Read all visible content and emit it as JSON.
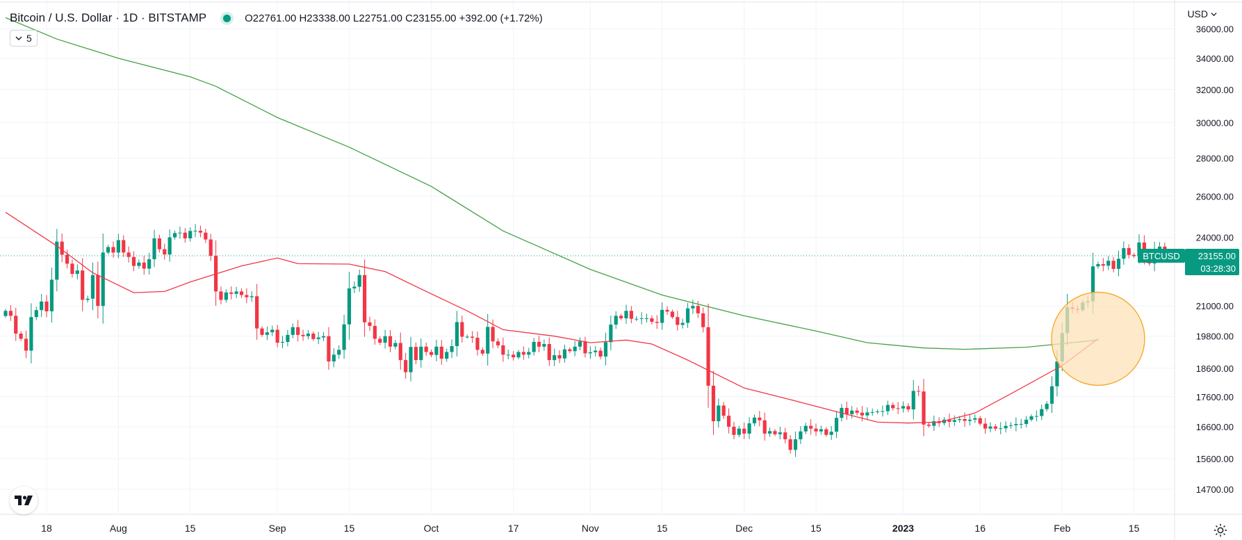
{
  "header": {
    "title": "Bitcoin / U.S. Dollar · 1D · BITSTAMP",
    "ohlc": "O22761.00  H23338.00  L22751.00  C23155.00  +392.00 (+1.72%)",
    "indicator_count": "5"
  },
  "currency": "USD",
  "colors": {
    "up": "#089981",
    "down": "#f23645",
    "ma_short": "#f23645",
    "ma_long": "#43a047",
    "highlight_fill": "#fde1b8",
    "highlight_stroke": "#f5a623",
    "price_line": "#089981"
  },
  "price_label": {
    "symbol": "BTCUSD",
    "price": "23155.00",
    "countdown": "03:28:30"
  },
  "chart_data": {
    "type": "candlestick",
    "title": "Bitcoin / U.S. Dollar · 1D · BITSTAMP",
    "xlabel": "",
    "ylabel": "",
    "y_scale": "log",
    "ylim": [
      14000,
      38000
    ],
    "xlim": [
      "2022-07-10",
      "2023-02-20"
    ],
    "grid": true,
    "y_ticks": [
      14700,
      15600,
      16600,
      17600,
      18600,
      19800,
      21000,
      24000,
      26000,
      28000,
      30000,
      32000,
      34000,
      36000
    ],
    "y_tick_labels": [
      "14700.00",
      "15600.00",
      "16600.00",
      "17600.00",
      "18600.00",
      "19800.00",
      "21000.00",
      "24000.00",
      "26000.00",
      "28000.00",
      "30000.00",
      "32000.00",
      "34000.00",
      "36000.00"
    ],
    "x_ticks": [
      {
        "date": "2022-07-18",
        "label": "18"
      },
      {
        "date": "2022-08-01",
        "label": "Aug"
      },
      {
        "date": "2022-08-15",
        "label": "15"
      },
      {
        "date": "2022-09-01",
        "label": "Sep"
      },
      {
        "date": "2022-09-15",
        "label": "15"
      },
      {
        "date": "2022-10-01",
        "label": "Oct"
      },
      {
        "date": "2022-10-17",
        "label": "17"
      },
      {
        "date": "2022-11-01",
        "label": "Nov"
      },
      {
        "date": "2022-11-15",
        "label": "15"
      },
      {
        "date": "2022-12-01",
        "label": "Dec"
      },
      {
        "date": "2022-12-15",
        "label": "15"
      },
      {
        "date": "2023-01-01",
        "label": "2023"
      },
      {
        "date": "2023-01-16",
        "label": "16"
      },
      {
        "date": "2023-02-01",
        "label": "Feb"
      },
      {
        "date": "2023-02-15",
        "label": "15"
      }
    ],
    "close_series": {
      "start_date": "2022-07-10",
      "values": [
        20800,
        20600,
        19900,
        19700,
        19250,
        20550,
        20830,
        21180,
        20780,
        22100,
        23800,
        23200,
        22800,
        22350,
        22500,
        21250,
        21300,
        22300,
        21000,
        23300,
        23550,
        23300,
        23870,
        23300,
        23100,
        22700,
        22850,
        22580,
        23000,
        23950,
        23450,
        23210,
        24000,
        24200,
        24220,
        23950,
        24300,
        24310,
        24220,
        23900,
        23150,
        21600,
        21250,
        21560,
        21500,
        21600,
        21450,
        21360,
        21400,
        20100,
        19850,
        19950,
        20050,
        19550,
        19580,
        19850,
        20150,
        19850,
        19800,
        19900,
        19690,
        19750,
        19800,
        18850,
        19100,
        19280,
        20260,
        21730,
        21800,
        22300,
        20340,
        20200,
        19700,
        19550,
        19800,
        19400,
        19540,
        18900,
        18460,
        19390,
        18900,
        19400,
        19200,
        19090,
        19400,
        18950,
        19200,
        19420,
        20350,
        19780,
        19780,
        19740,
        19280,
        19140,
        20160,
        19600,
        19450,
        19100,
        19100,
        19000,
        19200,
        19100,
        19200,
        19580,
        19400,
        19500,
        18900,
        19080,
        18960,
        19300,
        19230,
        19400,
        19600,
        19150,
        19190,
        19250,
        19030,
        19570,
        20250,
        20600,
        20500,
        20800,
        20480,
        20480,
        20500,
        20500,
        20360,
        20320,
        20840,
        20770,
        20550,
        20240,
        20320,
        20900,
        21000,
        20700,
        20150,
        17980,
        16780,
        17300,
        16960,
        16600,
        16340,
        16540,
        16380,
        16710,
        16900,
        16810,
        16380,
        16460,
        16360,
        16420,
        16200,
        15870,
        16200,
        16450,
        16630,
        16540,
        16450,
        16520,
        16340,
        16440,
        16890,
        17220,
        17010,
        17130,
        17060,
        16970,
        17070,
        17080,
        17100,
        17110,
        17320,
        17210,
        17200,
        17280,
        17170,
        17800,
        17780,
        16670,
        16630,
        16780,
        16720,
        16830,
        16760,
        16820,
        16850,
        16790,
        16830,
        16880,
        16700,
        16540,
        16610,
        16540,
        16550,
        16630,
        16650,
        16690,
        16690,
        16830,
        16940,
        16950,
        17180,
        17360,
        17960,
        18850,
        19920,
        20950,
        20880,
        20830,
        21140,
        21190,
        22680,
        22780,
        22710,
        22930,
        22570,
        23020,
        23500,
        23190,
        23140,
        23760,
        23060,
        22810,
        23400,
        23570,
        23150
      ]
    },
    "series": [
      {
        "name": "",
        "kind": "moving_average",
        "color": "#f23645",
        "points": [
          [
            "2022-07-10",
            25200
          ],
          [
            "2022-07-20",
            23600
          ],
          [
            "2022-07-27",
            22400
          ],
          [
            "2022-08-04",
            21550
          ],
          [
            "2022-08-10",
            21600
          ],
          [
            "2022-08-15",
            22000
          ],
          [
            "2022-08-25",
            22700
          ],
          [
            "2022-09-01",
            23050
          ],
          [
            "2022-09-05",
            22800
          ],
          [
            "2022-09-15",
            22780
          ],
          [
            "2022-09-22",
            22450
          ],
          [
            "2022-10-01",
            21500
          ],
          [
            "2022-10-08",
            20800
          ],
          [
            "2022-10-15",
            20050
          ],
          [
            "2022-10-25",
            19800
          ],
          [
            "2022-11-01",
            19550
          ],
          [
            "2022-11-08",
            19650
          ],
          [
            "2022-11-13",
            19500
          ],
          [
            "2022-11-20",
            18900
          ],
          [
            "2022-12-01",
            17900
          ],
          [
            "2022-12-10",
            17500
          ],
          [
            "2022-12-20",
            17050
          ],
          [
            "2022-12-27",
            16750
          ],
          [
            "2023-01-02",
            16720
          ],
          [
            "2023-01-08",
            16750
          ],
          [
            "2023-01-15",
            17050
          ],
          [
            "2023-01-22",
            17700
          ],
          [
            "2023-02-01",
            18700
          ],
          [
            "2023-02-08",
            19700
          ]
        ]
      },
      {
        "name": "",
        "kind": "moving_average",
        "color": "#43a047",
        "points": [
          [
            "2022-07-10",
            36800
          ],
          [
            "2022-07-20",
            35300
          ],
          [
            "2022-08-01",
            34000
          ],
          [
            "2022-08-15",
            32800
          ],
          [
            "2022-08-20",
            32200
          ],
          [
            "2022-09-01",
            30300
          ],
          [
            "2022-09-15",
            28600
          ],
          [
            "2022-10-01",
            26500
          ],
          [
            "2022-10-15",
            24300
          ],
          [
            "2022-11-01",
            22550
          ],
          [
            "2022-11-15",
            21450
          ],
          [
            "2022-12-01",
            20600
          ],
          [
            "2022-12-15",
            20000
          ],
          [
            "2022-12-25",
            19550
          ],
          [
            "2023-01-05",
            19350
          ],
          [
            "2023-01-13",
            19300
          ],
          [
            "2023-01-25",
            19380
          ],
          [
            "2023-02-08",
            19650
          ]
        ]
      }
    ],
    "highlight": {
      "center_date": "2023-02-08",
      "center_value": 19700
    }
  }
}
